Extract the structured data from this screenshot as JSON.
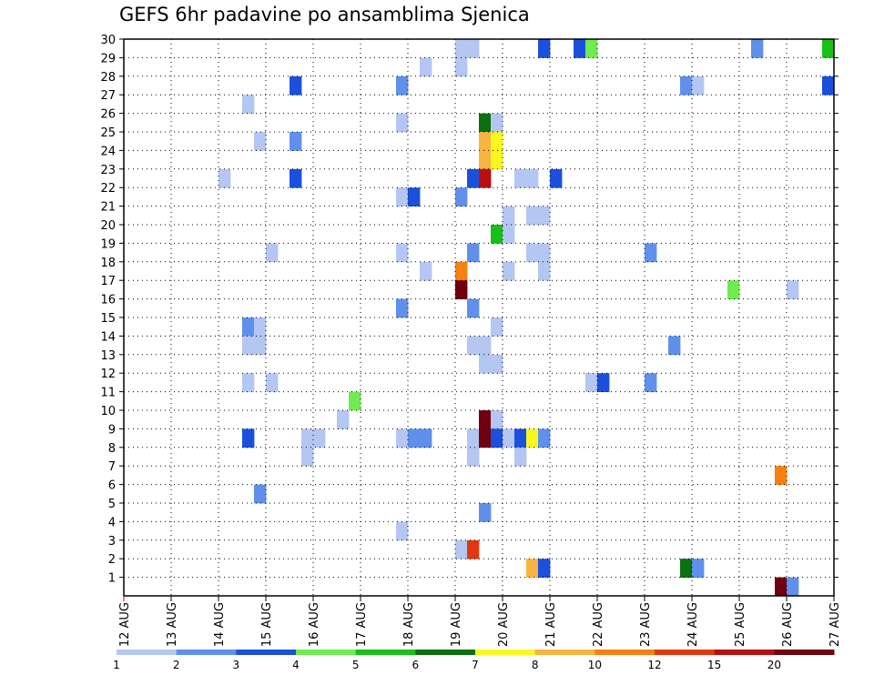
{
  "chart_data": {
    "type": "heatmap",
    "title": "GEFS 6hr padavine po ansamblima Sjenica",
    "xlabel": "",
    "ylabel": "",
    "x_unit": "days (6-hour steps)",
    "xlim": [
      0,
      15
    ],
    "ylim": [
      0,
      30
    ],
    "x_tick_labels": [
      "12 AUG",
      "13 AUG",
      "14 AUG",
      "15 AUG",
      "16 AUG",
      "17 AUG",
      "18 AUG",
      "19 AUG",
      "20 AUG",
      "21 AUG",
      "22 AUG",
      "23 AUG",
      "24 AUG",
      "25 AUG",
      "26 AUG",
      "27 AUG"
    ],
    "y_tick_labels": [
      "1",
      "2",
      "3",
      "4",
      "5",
      "6",
      "7",
      "8",
      "9",
      "10",
      "11",
      "12",
      "13",
      "14",
      "15",
      "16",
      "17",
      "18",
      "19",
      "20",
      "21",
      "22",
      "23",
      "24",
      "25",
      "26",
      "27",
      "28",
      "29",
      "30"
    ],
    "grid": true,
    "colorbar": {
      "labels": [
        "1",
        "2",
        "3",
        "4",
        "5",
        "6",
        "7",
        "8",
        "10",
        "12",
        "15",
        "20"
      ],
      "colors": [
        "#b4c6f2",
        "#6090ec",
        "#1c50dc",
        "#70ec50",
        "#18c018",
        "#0a7010",
        "#f8f820",
        "#f8b440",
        "#f88010",
        "#e03810",
        "#b81010",
        "#700010"
      ]
    },
    "cells": [
      {
        "x": 7.0,
        "y": 30,
        "c": 1
      },
      {
        "x": 7.25,
        "y": 30,
        "c": 1
      },
      {
        "x": 8.75,
        "y": 30,
        "c": 3
      },
      {
        "x": 9.5,
        "y": 30,
        "c": 3
      },
      {
        "x": 9.75,
        "y": 30,
        "c": 4
      },
      {
        "x": 13.25,
        "y": 30,
        "c": 2
      },
      {
        "x": 14.75,
        "y": 30,
        "c": 5
      },
      {
        "x": 6.25,
        "y": 29,
        "c": 1
      },
      {
        "x": 7.0,
        "y": 29,
        "c": 1
      },
      {
        "x": 3.5,
        "y": 28,
        "c": 3
      },
      {
        "x": 5.75,
        "y": 28,
        "c": 2
      },
      {
        "x": 11.75,
        "y": 28,
        "c": 2
      },
      {
        "x": 12.0,
        "y": 28,
        "c": 1
      },
      {
        "x": 14.75,
        "y": 28,
        "c": 3
      },
      {
        "x": 2.5,
        "y": 27,
        "c": 1
      },
      {
        "x": 5.75,
        "y": 26,
        "c": 1
      },
      {
        "x": 7.5,
        "y": 26,
        "c": 6
      },
      {
        "x": 7.75,
        "y": 26,
        "c": 1
      },
      {
        "x": 2.75,
        "y": 25,
        "c": 1
      },
      {
        "x": 3.5,
        "y": 25,
        "c": 2
      },
      {
        "x": 7.5,
        "y": 25,
        "c": 8
      },
      {
        "x": 7.75,
        "y": 25,
        "c": 7
      },
      {
        "x": 7.5,
        "y": 24,
        "c": 8
      },
      {
        "x": 7.75,
        "y": 24,
        "c": 7
      },
      {
        "x": 2.0,
        "y": 23,
        "c": 1
      },
      {
        "x": 3.5,
        "y": 23,
        "c": 3
      },
      {
        "x": 7.25,
        "y": 23,
        "c": 3
      },
      {
        "x": 7.5,
        "y": 23,
        "c": 11
      },
      {
        "x": 8.25,
        "y": 23,
        "c": 1
      },
      {
        "x": 8.5,
        "y": 23,
        "c": 1
      },
      {
        "x": 9.0,
        "y": 23,
        "c": 3
      },
      {
        "x": 5.75,
        "y": 22,
        "c": 1
      },
      {
        "x": 6.0,
        "y": 22,
        "c": 3
      },
      {
        "x": 7.0,
        "y": 22,
        "c": 2
      },
      {
        "x": 8.0,
        "y": 21,
        "c": 1
      },
      {
        "x": 8.5,
        "y": 21,
        "c": 1
      },
      {
        "x": 8.75,
        "y": 21,
        "c": 1
      },
      {
        "x": 7.75,
        "y": 20,
        "c": 5
      },
      {
        "x": 8.0,
        "y": 20,
        "c": 1
      },
      {
        "x": 3.0,
        "y": 19,
        "c": 1
      },
      {
        "x": 5.75,
        "y": 19,
        "c": 1
      },
      {
        "x": 7.25,
        "y": 19,
        "c": 2
      },
      {
        "x": 8.5,
        "y": 19,
        "c": 1
      },
      {
        "x": 8.75,
        "y": 19,
        "c": 1
      },
      {
        "x": 11.0,
        "y": 19,
        "c": 2
      },
      {
        "x": 6.25,
        "y": 18,
        "c": 1
      },
      {
        "x": 7.0,
        "y": 18,
        "c": 9
      },
      {
        "x": 8.0,
        "y": 18,
        "c": 1
      },
      {
        "x": 8.75,
        "y": 18,
        "c": 1
      },
      {
        "x": 7.0,
        "y": 17,
        "c": 12
      },
      {
        "x": 12.75,
        "y": 17,
        "c": 4
      },
      {
        "x": 14.0,
        "y": 17,
        "c": 1
      },
      {
        "x": 5.75,
        "y": 16,
        "c": 2
      },
      {
        "x": 7.25,
        "y": 16,
        "c": 2
      },
      {
        "x": 2.5,
        "y": 15,
        "c": 2
      },
      {
        "x": 2.75,
        "y": 15,
        "c": 1
      },
      {
        "x": 7.75,
        "y": 15,
        "c": 1
      },
      {
        "x": 2.5,
        "y": 14,
        "c": 1
      },
      {
        "x": 2.75,
        "y": 14,
        "c": 1
      },
      {
        "x": 7.25,
        "y": 14,
        "c": 1
      },
      {
        "x": 7.5,
        "y": 14,
        "c": 1
      },
      {
        "x": 11.5,
        "y": 14,
        "c": 2
      },
      {
        "x": 7.5,
        "y": 13,
        "c": 1
      },
      {
        "x": 7.75,
        "y": 13,
        "c": 1
      },
      {
        "x": 2.5,
        "y": 12,
        "c": 1
      },
      {
        "x": 3.0,
        "y": 12,
        "c": 1
      },
      {
        "x": 9.75,
        "y": 12,
        "c": 1
      },
      {
        "x": 10.0,
        "y": 12,
        "c": 3
      },
      {
        "x": 11.0,
        "y": 12,
        "c": 2
      },
      {
        "x": 4.75,
        "y": 11,
        "c": 4
      },
      {
        "x": 4.5,
        "y": 10,
        "c": 1
      },
      {
        "x": 7.5,
        "y": 10,
        "c": 12
      },
      {
        "x": 7.75,
        "y": 10,
        "c": 1
      },
      {
        "x": 2.5,
        "y": 9,
        "c": 3
      },
      {
        "x": 3.75,
        "y": 9,
        "c": 1
      },
      {
        "x": 4.0,
        "y": 9,
        "c": 1
      },
      {
        "x": 5.75,
        "y": 9,
        "c": 1
      },
      {
        "x": 6.0,
        "y": 9,
        "c": 2
      },
      {
        "x": 6.25,
        "y": 9,
        "c": 2
      },
      {
        "x": 7.25,
        "y": 9,
        "c": 1
      },
      {
        "x": 7.5,
        "y": 9,
        "c": 12
      },
      {
        "x": 7.75,
        "y": 9,
        "c": 3
      },
      {
        "x": 8.0,
        "y": 9,
        "c": 1
      },
      {
        "x": 8.25,
        "y": 9,
        "c": 3
      },
      {
        "x": 8.5,
        "y": 9,
        "c": 7
      },
      {
        "x": 8.75,
        "y": 9,
        "c": 2
      },
      {
        "x": 3.75,
        "y": 8,
        "c": 1
      },
      {
        "x": 7.25,
        "y": 8,
        "c": 1
      },
      {
        "x": 8.25,
        "y": 8,
        "c": 1
      },
      {
        "x": 13.75,
        "y": 7,
        "c": 9
      },
      {
        "x": 2.75,
        "y": 6,
        "c": 2
      },
      {
        "x": 7.5,
        "y": 5,
        "c": 2
      },
      {
        "x": 5.75,
        "y": 4,
        "c": 1
      },
      {
        "x": 7.0,
        "y": 3,
        "c": 1
      },
      {
        "x": 7.25,
        "y": 3,
        "c": 10
      },
      {
        "x": 8.5,
        "y": 2,
        "c": 8
      },
      {
        "x": 8.75,
        "y": 2,
        "c": 3
      },
      {
        "x": 11.75,
        "y": 2,
        "c": 6
      },
      {
        "x": 12.0,
        "y": 2,
        "c": 2
      },
      {
        "x": 13.75,
        "y": 1,
        "c": 12
      },
      {
        "x": 14.0,
        "y": 1,
        "c": 2
      }
    ]
  }
}
